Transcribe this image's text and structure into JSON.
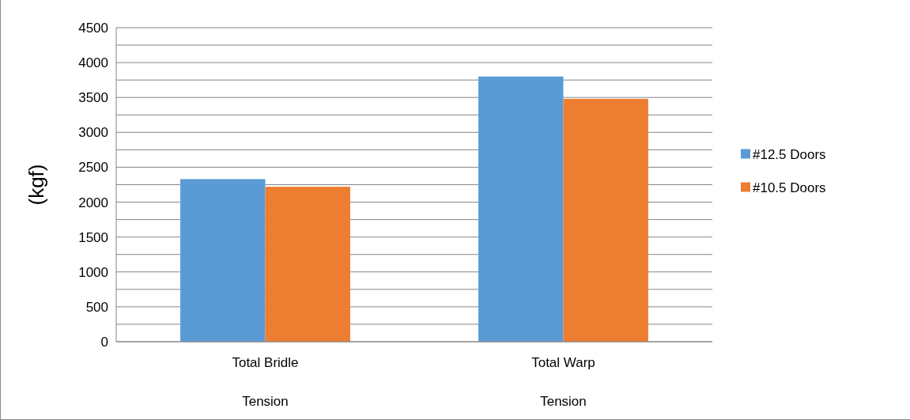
{
  "chart_data": {
    "type": "bar",
    "ylabel": "(kgf)",
    "categories": [
      "Total Bridle Tension",
      "Total Warp Tension"
    ],
    "series": [
      {
        "name": "#12.5 Doors",
        "color": "#5b9bd5",
        "values": [
          2330,
          3800
        ]
      },
      {
        "name": "#10.5 Doors",
        "color": "#ed7d31",
        "values": [
          2220,
          3480
        ]
      }
    ],
    "ylim": [
      0,
      4500
    ],
    "yticks": [
      0,
      {
        "value": 250,
        "label": null
      },
      500,
      {
        "value": 750,
        "label": null
      },
      1000,
      {
        "value": 1250,
        "label": null
      },
      1500,
      {
        "value": 1750,
        "label": null
      },
      2000,
      {
        "value": 2250,
        "label": null
      },
      2500,
      {
        "value": 2750,
        "label": null
      },
      3000,
      {
        "value": 3250,
        "label": null
      },
      3500,
      {
        "value": 3750,
        "label": null
      },
      4000,
      {
        "value": 4250,
        "label": null
      },
      4500
    ],
    "grid": "y",
    "legend": "right"
  }
}
